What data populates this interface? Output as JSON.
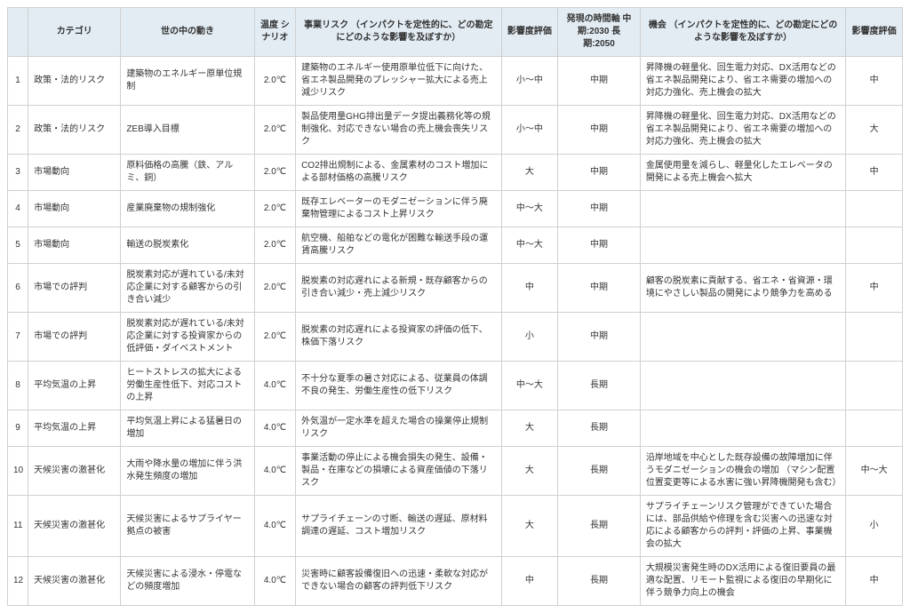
{
  "headers": {
    "num": "",
    "category": "カテゴリ",
    "trend": "世の中の動き",
    "temp": "温度\nシナリオ",
    "risk": "事業リスク\n（インパクトを定性的に、どの勘定にどのような影響を及ぼすか）",
    "impact1": "影響度評価",
    "time": "発現の時間軸\n中期:2030\n長期:2050",
    "opp": "機会\n（インパクトを定性的に、どの勘定にどのような影響を及ぼすか）",
    "impact2": "影響度評価"
  },
  "rows": [
    {
      "num": "1",
      "category": "政策・法的リスク",
      "trend": "建築物のエネルギー原単位規制",
      "temp": "2.0℃",
      "risk": "建築物のエネルギー使用原単位低下に向けた、省エネ製品開発のプレッシャー拡大による売上減少リスク",
      "impact1": "小～中",
      "time": "中期",
      "opp": "昇降機の軽量化、回生電力対応、DX活用などの省エネ製品開発により、省エネ需要の増加への対応力強化、売上機会の拡大",
      "impact2": "中"
    },
    {
      "num": "2",
      "category": "政策・法的リスク",
      "trend": "ZEB導入目標",
      "temp": "2.0℃",
      "risk": "製品使用量GHG排出量データ提出義務化等の規制強化、対応できない場合の売上機会喪失リスク",
      "impact1": "小～中",
      "time": "中期",
      "opp": "昇降機の軽量化、回生電力対応、DX活用などの省エネ製品開発により、省エネ需要の増加への対応力強化、売上機会の拡大",
      "impact2": "大"
    },
    {
      "num": "3",
      "category": "市場動向",
      "trend": "原料価格の高騰（鉄、アルミ、銅）",
      "temp": "2.0℃",
      "risk": "CO2排出規制による、金属素材のコスト増加による部材価格の高騰リスク",
      "impact1": "大",
      "time": "中期",
      "opp": "金属使用量を減らし、軽量化したエレベータの開発による売上機会へ拡大",
      "impact2": "中"
    },
    {
      "num": "4",
      "category": "市場動向",
      "trend": "産業廃棄物の規制強化",
      "temp": "2.0℃",
      "risk": "既存エレベーターのモダニゼーションに伴う廃棄物管理によるコスト上昇リスク",
      "impact1": "中～大",
      "time": "中期",
      "opp": "",
      "impact2": ""
    },
    {
      "num": "5",
      "category": "市場動向",
      "trend": "輸送の脱炭素化",
      "temp": "2.0℃",
      "risk": "航空機、船舶などの電化が困難な輸送手段の運賃高騰リスク",
      "impact1": "中～大",
      "time": "中期",
      "opp": "",
      "impact2": ""
    },
    {
      "num": "6",
      "category": "市場での評判",
      "trend": "脱炭素対応が遅れている/未対応企業に対する顧客からの引き合い減少",
      "temp": "2.0℃",
      "risk": "脱炭素の対応遅れによる新規・既存顧客からの引き合い減少・売上減少リスク",
      "impact1": "中",
      "time": "中期",
      "opp": "顧客の脱炭素に貢献する、省エネ・省資源・環境にやさしい製品の開発により競争力を高める",
      "impact2": "中"
    },
    {
      "num": "7",
      "category": "市場での評判",
      "trend": "脱炭素対応が遅れている/未対応企業に対する投資家からの低評価・ダイベストメント",
      "temp": "2.0℃",
      "risk": "脱炭素の対応遅れによる投資家の評価の低下、株価下落リスク",
      "impact1": "小",
      "time": "中期",
      "opp": "",
      "impact2": ""
    },
    {
      "num": "8",
      "category": "平均気温の上昇",
      "trend": "ヒートストレスの拡大による労働生産性低下、対応コストの上昇",
      "temp": "4.0℃",
      "risk": "不十分な夏季の暑さ対応による、従業員の体調不良の発生、労働生産性の低下リスク",
      "impact1": "中～大",
      "time": "長期",
      "opp": "",
      "impact2": ""
    },
    {
      "num": "9",
      "category": "平均気温の上昇",
      "trend": "平均気温上昇による猛暑日の増加",
      "temp": "4.0℃",
      "risk": "外気温が一定水準を超えた場合の操業停止規制リスク",
      "impact1": "大",
      "time": "長期",
      "opp": "",
      "impact2": ""
    },
    {
      "num": "10",
      "category": "天候災害の激甚化",
      "trend": "大雨や降水量の増加に伴う洪水発生頻度の増加",
      "temp": "4.0℃",
      "risk": "事業活動の停止による機会損失の発生、設備・製品・在庫などの損壊による資産価値の下落リスク",
      "impact1": "大",
      "time": "長期",
      "opp": "沿岸地域を中心とした既存設備の故障増加に伴うモダニゼーションの機会の増加\n（マシン配置位置変更等による水害に強い昇降機開発も含む）",
      "impact2": "中～大"
    },
    {
      "num": "11",
      "category": "天候災害の激甚化",
      "trend": "天候災害によるサプライヤー拠点の被害",
      "temp": "4.0℃",
      "risk": "サプライチェーンの寸断、輸送の遅延、原材料調達の遅延、コスト増加リスク",
      "impact1": "大",
      "time": "長期",
      "opp": "サプライチェーンリスク管理ができていた場合には、部品供給や修理を含む災害への迅速な対応による顧客からの評判・評価の上昇、事業機会の拡大",
      "impact2": "小"
    },
    {
      "num": "12",
      "category": "天候災害の激甚化",
      "trend": "天候災害による浸水・停電などの頻度増加",
      "temp": "4.0℃",
      "risk": "災害時に顧客設備復旧への迅速・柔軟な対応ができない場合の顧客の評判低下リスク",
      "impact1": "中",
      "time": "長期",
      "opp": "大規模災害発生時のDX活用による復旧要員の最適な配置、リモート監視による復旧の早期化に伴う競争力向上の機会",
      "impact2": "中"
    }
  ]
}
